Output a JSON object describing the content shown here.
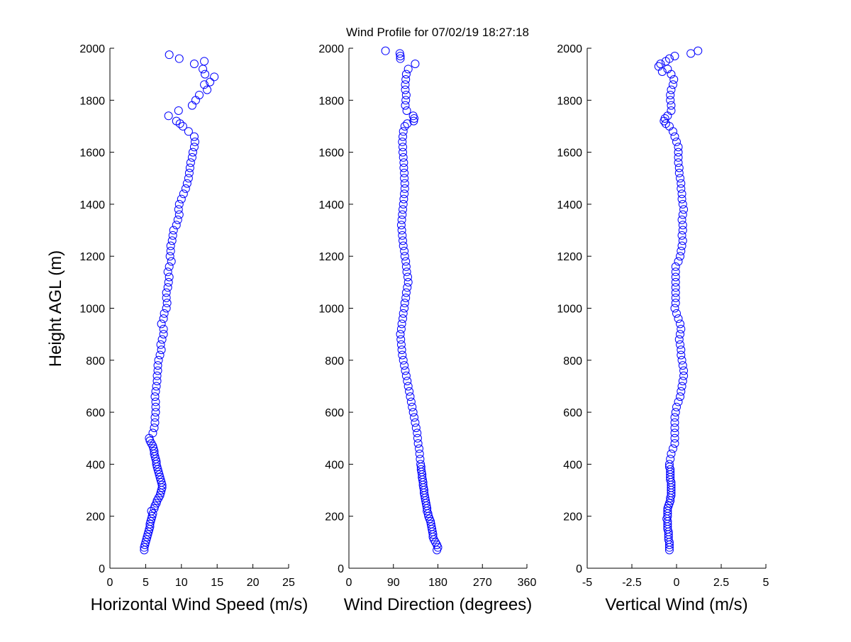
{
  "title": "Wind Profile for  07/02/19 18:27:18",
  "ylabel": "Height AGL (m)",
  "marker_color": "#0000ff",
  "y_ticks": [
    "0",
    "200",
    "400",
    "600",
    "800",
    "1000",
    "1200",
    "1400",
    "1600",
    "1800",
    "2000"
  ],
  "chart_data": [
    {
      "type": "scatter",
      "xlabel": "Horizontal Wind Speed (m/s)",
      "ylabel": "Height AGL (m)",
      "xlim": [
        0,
        25
      ],
      "ylim": [
        0,
        2000
      ],
      "x_ticks": [
        0,
        5,
        10,
        15,
        20,
        25
      ],
      "x_tick_labels": [
        "0",
        "5",
        "10",
        "15",
        "20",
        "25"
      ],
      "y_ticks": [
        0,
        200,
        400,
        600,
        800,
        1000,
        1200,
        1400,
        1600,
        1800,
        2000
      ],
      "grid": false,
      "points": {
        "height": [
          70,
          80,
          90,
          100,
          110,
          120,
          130,
          140,
          150,
          160,
          170,
          180,
          190,
          200,
          210,
          220,
          230,
          240,
          250,
          260,
          270,
          280,
          290,
          300,
          310,
          320,
          330,
          340,
          350,
          360,
          370,
          380,
          390,
          400,
          410,
          420,
          430,
          440,
          450,
          460,
          470,
          480,
          490,
          500,
          520,
          540,
          560,
          580,
          600,
          620,
          640,
          660,
          680,
          700,
          720,
          740,
          760,
          780,
          800,
          820,
          840,
          860,
          880,
          900,
          920,
          940,
          960,
          980,
          1000,
          1020,
          1040,
          1060,
          1080,
          1100,
          1120,
          1140,
          1160,
          1180,
          1200,
          1220,
          1240,
          1260,
          1280,
          1300,
          1320,
          1340,
          1360,
          1380,
          1400,
          1420,
          1440,
          1460,
          1480,
          1500,
          1520,
          1540,
          1560,
          1580,
          1600,
          1620,
          1640,
          1660,
          1680,
          1700,
          1710,
          1720,
          1740,
          1760,
          1780,
          1800,
          1820,
          1840,
          1860,
          1870,
          1890,
          1900,
          1920,
          1940,
          1950,
          1960,
          1975
        ],
        "value": [
          4.8,
          4.8,
          4.9,
          5.0,
          5.1,
          5.2,
          5.3,
          5.4,
          5.5,
          5.6,
          5.6,
          5.7,
          5.8,
          5.9,
          6.0,
          5.8,
          6.2,
          6.3,
          6.5,
          6.6,
          6.8,
          7.0,
          7.1,
          7.2,
          7.3,
          7.3,
          7.2,
          7.1,
          7.0,
          6.9,
          6.8,
          6.7,
          6.6,
          6.5,
          6.5,
          6.4,
          6.3,
          6.2,
          6.2,
          6.1,
          6.0,
          5.8,
          5.6,
          5.5,
          6.0,
          6.2,
          6.3,
          6.3,
          6.4,
          6.4,
          6.4,
          6.3,
          6.4,
          6.5,
          6.6,
          6.6,
          6.7,
          6.7,
          6.8,
          7.0,
          7.2,
          7.1,
          7.3,
          7.5,
          7.5,
          7.2,
          7.5,
          7.6,
          7.9,
          8.0,
          7.9,
          7.9,
          8.1,
          8.2,
          8.3,
          8.1,
          8.3,
          8.6,
          8.4,
          8.5,
          8.5,
          8.7,
          8.8,
          8.9,
          9.3,
          9.5,
          9.7,
          9.6,
          9.7,
          10.0,
          10.3,
          10.6,
          10.8,
          11.0,
          11.1,
          11.2,
          11.3,
          11.5,
          11.6,
          11.8,
          11.9,
          11.8,
          11.0,
          10.2,
          9.8,
          9.3,
          8.2,
          9.6,
          11.5,
          12.0,
          12.5,
          13.6,
          13.2,
          14.0,
          14.6,
          13.3,
          13.0,
          11.8,
          13.2,
          9.7,
          8.3,
          6.8,
          10.6
        ]
      }
    },
    {
      "type": "scatter",
      "xlabel": "Wind Direction (degrees)",
      "ylabel": "",
      "xlim": [
        0,
        360
      ],
      "ylim": [
        0,
        2000
      ],
      "x_ticks": [
        0,
        90,
        180,
        270,
        360
      ],
      "x_tick_labels": [
        "0",
        "90",
        "180",
        "270",
        "360"
      ],
      "y_ticks": [
        0,
        200,
        400,
        600,
        800,
        1000,
        1200,
        1400,
        1600,
        1800,
        2000
      ],
      "grid": false,
      "points": {
        "height": [
          70,
          80,
          90,
          100,
          110,
          120,
          130,
          140,
          150,
          160,
          170,
          180,
          190,
          200,
          210,
          220,
          230,
          240,
          250,
          260,
          270,
          280,
          290,
          300,
          310,
          320,
          330,
          340,
          350,
          360,
          370,
          380,
          390,
          400,
          420,
          440,
          460,
          480,
          500,
          520,
          540,
          560,
          580,
          600,
          620,
          640,
          660,
          680,
          700,
          720,
          740,
          760,
          780,
          800,
          820,
          840,
          860,
          880,
          900,
          920,
          940,
          960,
          980,
          1000,
          1020,
          1040,
          1060,
          1080,
          1100,
          1120,
          1140,
          1160,
          1180,
          1200,
          1220,
          1240,
          1260,
          1280,
          1300,
          1320,
          1340,
          1360,
          1380,
          1400,
          1420,
          1440,
          1460,
          1480,
          1500,
          1520,
          1540,
          1560,
          1580,
          1600,
          1620,
          1640,
          1660,
          1680,
          1700,
          1710,
          1720,
          1730,
          1740,
          1760,
          1780,
          1800,
          1820,
          1840,
          1860,
          1880,
          1900,
          1920,
          1940,
          1960,
          1970,
          1980,
          1990
        ],
        "value": [
          178,
          180,
          178,
          175,
          172,
          170,
          170,
          169,
          168,
          167,
          166,
          165,
          163,
          161,
          160,
          158,
          158,
          157,
          156,
          155,
          154,
          153,
          152,
          152,
          151,
          150,
          150,
          149,
          148,
          148,
          147,
          146,
          146,
          145,
          144,
          143,
          142,
          140,
          139,
          138,
          136,
          134,
          132,
          130,
          128,
          126,
          124,
          122,
          120,
          118,
          116,
          114,
          112,
          110,
          108,
          107,
          106,
          105,
          104,
          106,
          107,
          109,
          110,
          112,
          113,
          115,
          116,
          118,
          120,
          119,
          117,
          116,
          115,
          113,
          112,
          110,
          109,
          108,
          107,
          106,
          107,
          108,
          109,
          110,
          111,
          112,
          113,
          113,
          112,
          112,
          111,
          111,
          110,
          109,
          109,
          108,
          109,
          110,
          113,
          118,
          131,
          132,
          130,
          117,
          114,
          115,
          116,
          114,
          114,
          115,
          116,
          120,
          134,
          104,
          104,
          103,
          74,
          72,
          68
        ]
      }
    },
    {
      "type": "scatter",
      "xlabel": "Vertical Wind (m/s)",
      "ylabel": "",
      "xlim": [
        -5,
        5
      ],
      "ylim": [
        0,
        2000
      ],
      "x_ticks": [
        -5,
        -2.5,
        0,
        2.5,
        5
      ],
      "x_tick_labels": [
        "-5",
        "-2.5",
        "0",
        "2.5",
        "5"
      ],
      "y_ticks": [
        0,
        200,
        400,
        600,
        800,
        1000,
        1200,
        1400,
        1600,
        1800,
        2000
      ],
      "grid": false,
      "points": {
        "height": [
          70,
          80,
          90,
          100,
          110,
          120,
          130,
          140,
          150,
          160,
          170,
          180,
          190,
          200,
          210,
          220,
          230,
          240,
          250,
          260,
          270,
          280,
          290,
          300,
          310,
          320,
          330,
          340,
          350,
          360,
          370,
          380,
          390,
          400,
          420,
          440,
          460,
          480,
          500,
          520,
          540,
          560,
          580,
          600,
          620,
          640,
          660,
          680,
          700,
          720,
          740,
          760,
          780,
          800,
          820,
          840,
          860,
          880,
          900,
          920,
          940,
          960,
          980,
          1000,
          1020,
          1040,
          1060,
          1080,
          1100,
          1120,
          1140,
          1160,
          1180,
          1200,
          1220,
          1240,
          1260,
          1280,
          1300,
          1320,
          1340,
          1360,
          1380,
          1400,
          1420,
          1440,
          1460,
          1480,
          1500,
          1520,
          1540,
          1560,
          1580,
          1600,
          1620,
          1640,
          1660,
          1680,
          1700,
          1710,
          1720,
          1730,
          1740,
          1760,
          1780,
          1800,
          1820,
          1840,
          1860,
          1880,
          1900,
          1910,
          1920,
          1930,
          1940,
          1950,
          1960,
          1970,
          1980,
          1990
        ],
        "value": [
          -0.4,
          -0.4,
          -0.4,
          -0.4,
          -0.45,
          -0.45,
          -0.45,
          -0.45,
          -0.5,
          -0.5,
          -0.5,
          -0.5,
          -0.55,
          -0.5,
          -0.5,
          -0.5,
          -0.5,
          -0.45,
          -0.4,
          -0.35,
          -0.35,
          -0.3,
          -0.3,
          -0.3,
          -0.3,
          -0.3,
          -0.3,
          -0.35,
          -0.35,
          -0.35,
          -0.35,
          -0.35,
          -0.4,
          -0.4,
          -0.35,
          -0.3,
          -0.2,
          -0.1,
          -0.1,
          -0.1,
          -0.1,
          -0.1,
          -0.1,
          -0.05,
          0,
          0.1,
          0.2,
          0.25,
          0.3,
          0.35,
          0.4,
          0.4,
          0.35,
          0.3,
          0.25,
          0.25,
          0.2,
          0.15,
          0.2,
          0.25,
          0.2,
          0.1,
          0,
          -0.1,
          -0.05,
          -0.05,
          -0.05,
          -0.05,
          -0.05,
          -0.05,
          -0.05,
          -0.05,
          0.1,
          0.2,
          0.25,
          0.3,
          0.35,
          0.3,
          0.35,
          0.35,
          0.3,
          0.35,
          0.4,
          0.35,
          0.3,
          0.3,
          0.25,
          0.25,
          0.2,
          0.15,
          0.15,
          0.1,
          0.1,
          0.1,
          0.1,
          0,
          -0.1,
          -0.2,
          -0.4,
          -0.6,
          -0.7,
          -0.65,
          -0.5,
          -0.3,
          -0.3,
          -0.35,
          -0.35,
          -0.3,
          -0.2,
          -0.15,
          -0.3,
          -0.8,
          -0.5,
          -1.0,
          -0.9,
          -0.6,
          -0.4,
          -0.1,
          0.8,
          1.2
        ]
      }
    }
  ]
}
